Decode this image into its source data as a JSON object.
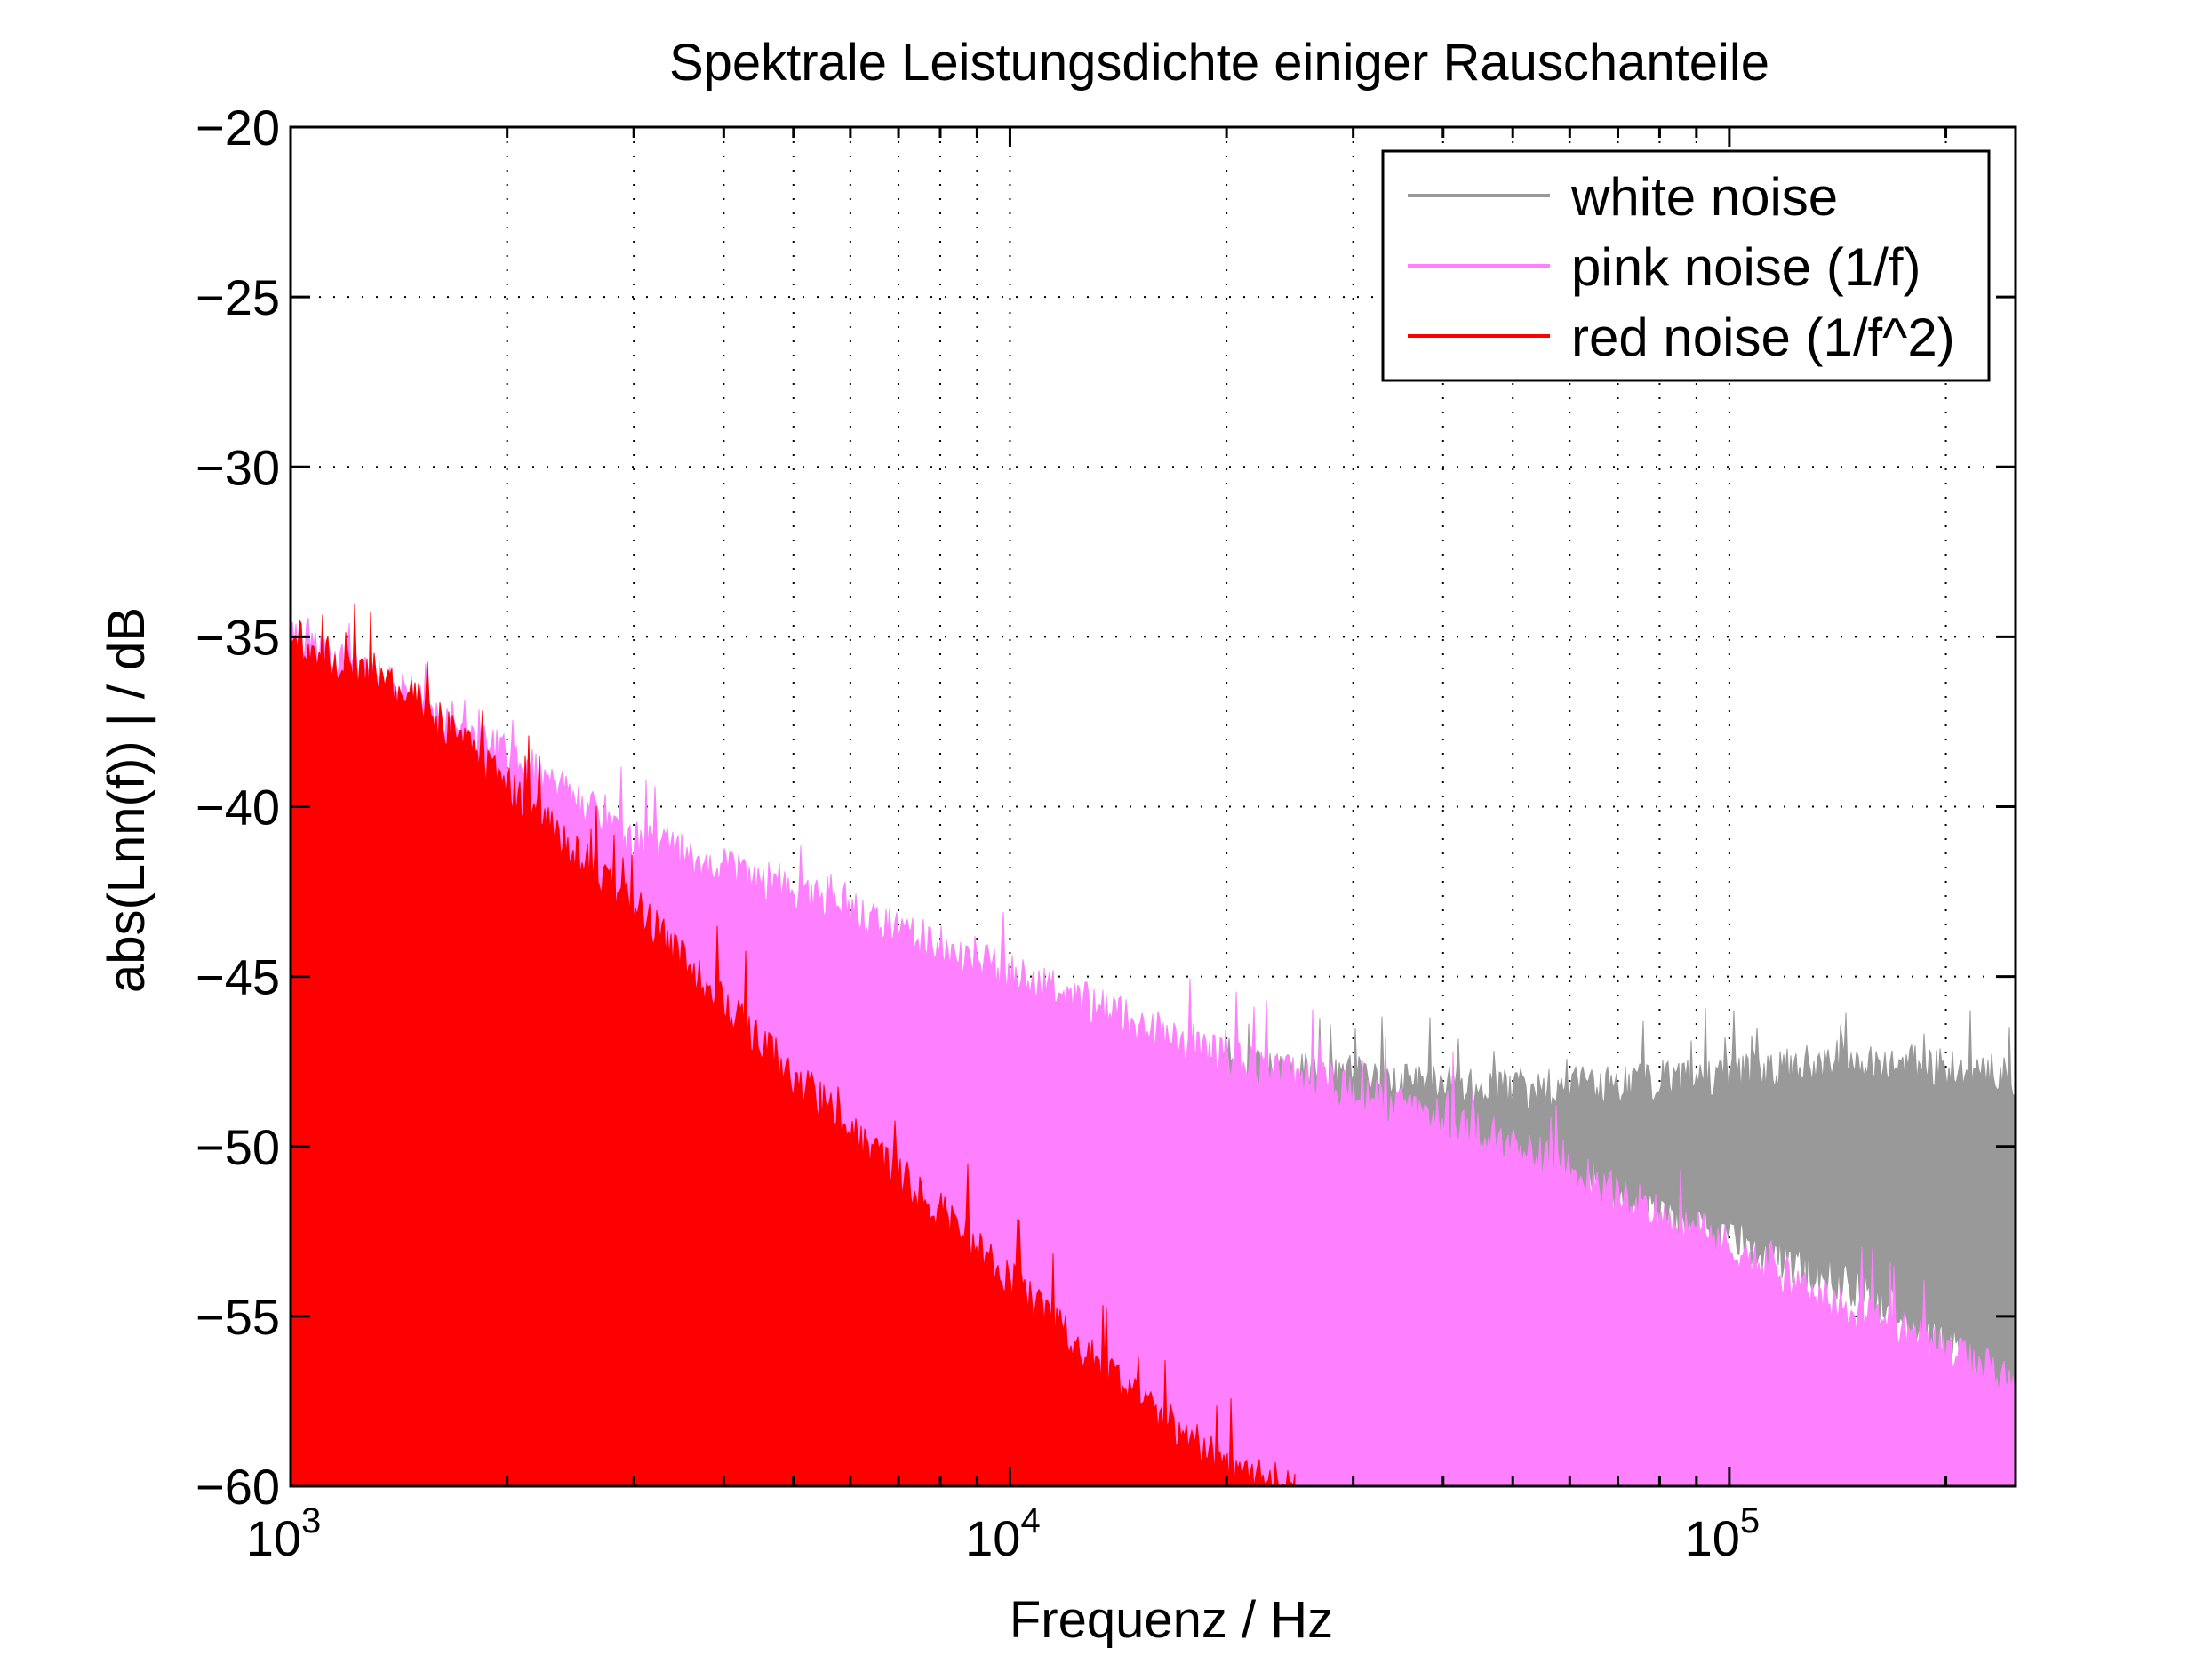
{
  "chart_data": {
    "type": "area",
    "title": "Spektrale Leistungsdichte einiger Rauschanteile",
    "xlabel": "Frequenz / Hz",
    "ylabel": "abs(Lnn(f)) | / dB",
    "xscale": "log",
    "xlim": [
      1000,
      250000
    ],
    "ylim": [
      -60,
      -20
    ],
    "xticks": [
      {
        "base": "10",
        "exp": "3",
        "value": 1000
      },
      {
        "base": "10",
        "exp": "4",
        "value": 10000
      },
      {
        "base": "10",
        "exp": "5",
        "value": 100000
      }
    ],
    "yticks": [
      "−20",
      "−25",
      "−30",
      "−35",
      "−40",
      "−45",
      "−50",
      "−55",
      "−60"
    ],
    "ytick_values": [
      -20,
      -25,
      -30,
      -35,
      -40,
      -45,
      -50,
      -55,
      -60
    ],
    "grid": true,
    "legend_position": "top-right",
    "series": [
      {
        "name": "white noise",
        "color": "#999999",
        "x": [
          1000,
          10000,
          30000,
          50000,
          100000,
          150000,
          200000,
          250000
        ],
        "upper": [
          -47.5,
          -47.5,
          -48,
          -48.5,
          -48,
          -47.5,
          -47.8,
          -48
        ],
        "lower": [
          -60,
          -60,
          -60,
          -50,
          -52,
          -53.5,
          -55,
          -57
        ]
      },
      {
        "name": "pink noise (1/f)",
        "color": "#ff80ff",
        "x": [
          1000,
          1500,
          2000,
          3000,
          5000,
          10000,
          20000,
          30000,
          50000,
          100000,
          150000,
          250000
        ],
        "upper": [
          -35,
          -37,
          -38.5,
          -41,
          -42.5,
          -45,
          -47.5,
          -48.5,
          -50,
          -53,
          -55,
          -57
        ],
        "lower": [
          -60,
          -60,
          -60,
          -60,
          -60,
          -60,
          -60,
          -60,
          -60,
          -60,
          -60,
          -60
        ]
      },
      {
        "name": "red noise (1/f^2)",
        "color": "#ff0000",
        "x": [
          1000,
          1500,
          2000,
          3000,
          5000,
          8000,
          10000,
          15000,
          20000,
          25000
        ],
        "upper": [
          -35,
          -37,
          -39.5,
          -43,
          -48,
          -52,
          -54,
          -57.5,
          -59.5,
          -60
        ],
        "lower": [
          -60,
          -60,
          -60,
          -60,
          -60,
          -60,
          -60,
          -60,
          -60,
          -60
        ]
      }
    ]
  }
}
